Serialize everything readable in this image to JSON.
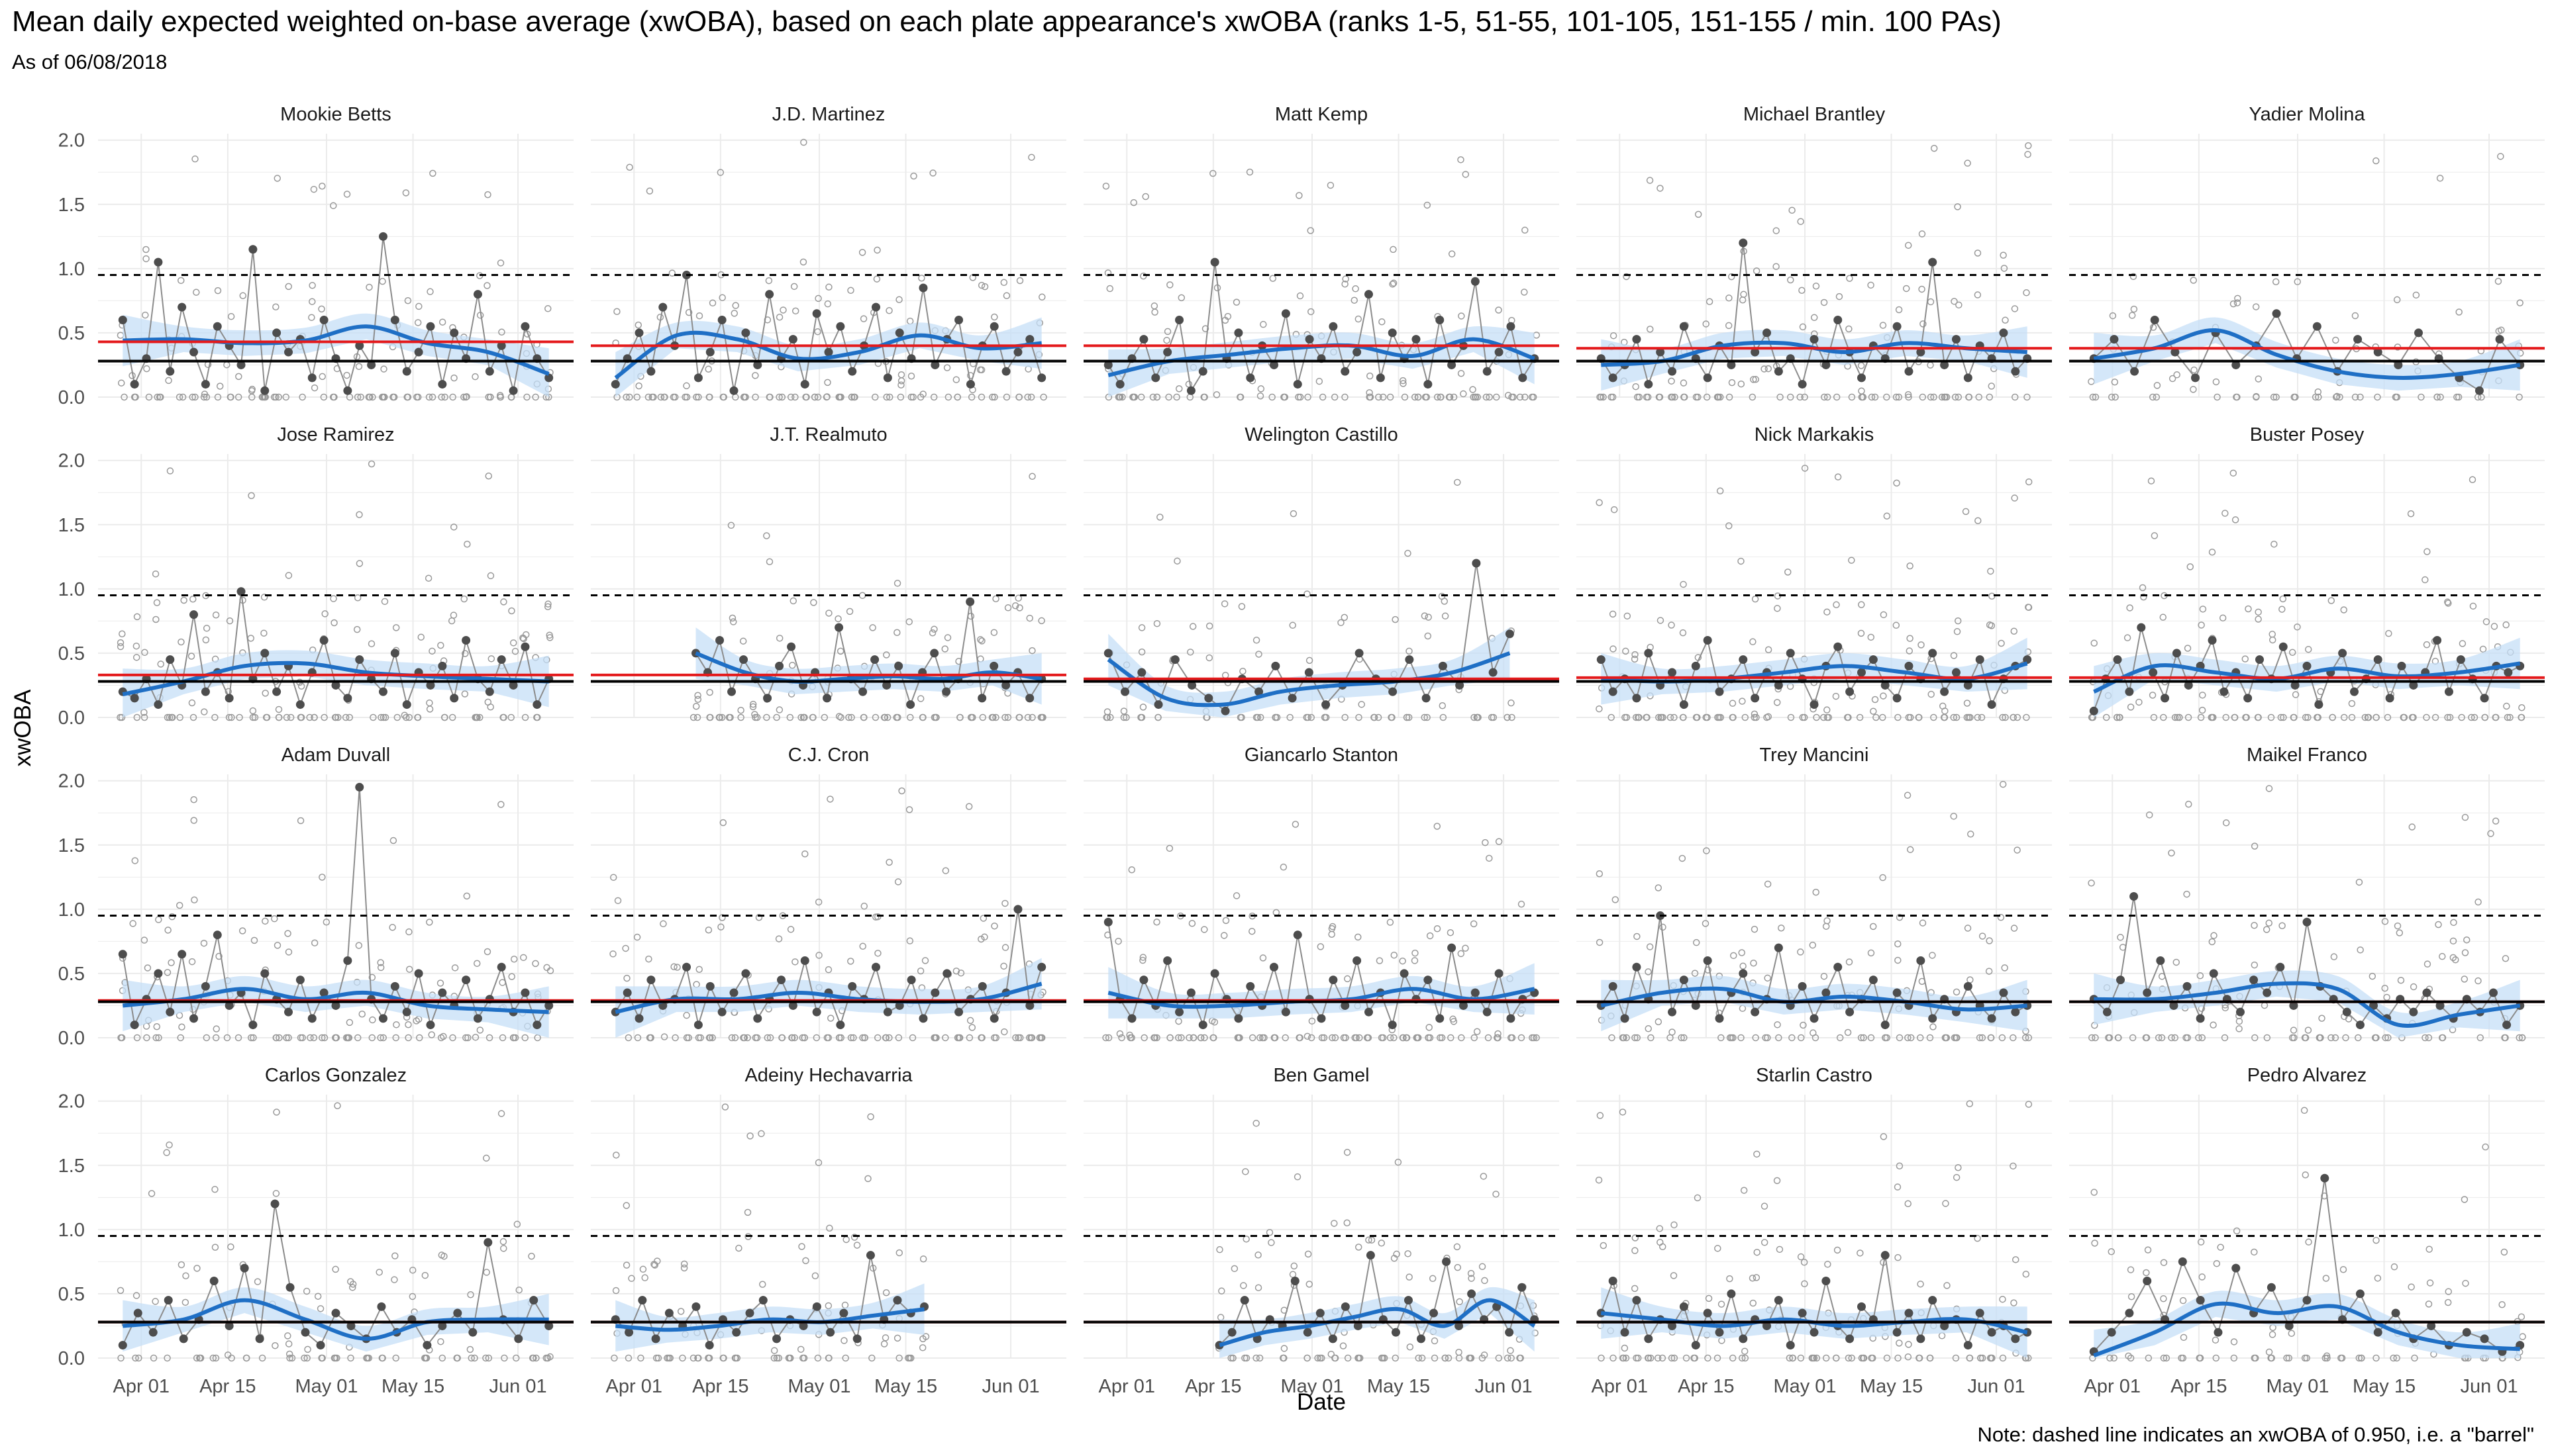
{
  "chart_data": {
    "type": "scatter",
    "title": "Mean daily expected weighted on-base average (xwOBA), based on each plate appearance's xwOBA (ranks 1-5, 51-55, 101-105, 151-155 / min. 100 PAs)",
    "subtitle": "As of 06/08/2018",
    "xlabel": "Date",
    "ylabel": "xwOBA",
    "note": "Note: dashed line indicates an xwOBA of 0.950, i.e. a \"barrel\"",
    "x_range": [
      "2018-03-25",
      "2018-06-10"
    ],
    "x_ticks": [
      "Apr 01",
      "Apr 15",
      "May 01",
      "May 15",
      "Jun 01"
    ],
    "ylim": [
      0,
      2.05
    ],
    "y_ticks": [
      "0.0",
      "0.5",
      "1.0",
      "1.5",
      "2.0"
    ],
    "barrel_xwoba": 0.95,
    "grid": true,
    "colors": {
      "daily_mean": "#4d4d4d",
      "pa_points": "#999999",
      "smooth": "#1f6fc5",
      "ribbon": "#c6dff7",
      "player_mean": "#e41a1c",
      "league_mean": "#000000"
    },
    "league_mean": 0.28,
    "panels": [
      {
        "name": "Mookie Betts",
        "start": "2018-03-29",
        "end": "2018-06-06",
        "mean": 0.43,
        "smooth": [
          0.44,
          0.45,
          0.42,
          0.44,
          0.55,
          0.42,
          0.35,
          0.18
        ],
        "daily": [
          0.6,
          0.1,
          0.3,
          1.05,
          0.2,
          0.7,
          0.35,
          0.1,
          0.55,
          0.4,
          0.25,
          1.15,
          0.05,
          0.5,
          0.35,
          0.45,
          0.15,
          0.6,
          0.3,
          0.05,
          0.4,
          0.25,
          1.25,
          0.6,
          0.2,
          0.35,
          0.55,
          0.1,
          0.5,
          0.3,
          0.8,
          0.2,
          0.4,
          0.05,
          0.55,
          0.3,
          0.15
        ]
      },
      {
        "name": "J.D. Martinez",
        "start": "2018-03-29",
        "end": "2018-06-06",
        "mean": 0.4,
        "smooth": [
          0.15,
          0.48,
          0.45,
          0.3,
          0.35,
          0.48,
          0.38,
          0.42
        ],
        "daily": [
          0.1,
          0.3,
          0.5,
          0.2,
          0.7,
          0.4,
          0.95,
          0.15,
          0.35,
          0.6,
          0.05,
          0.5,
          0.25,
          0.8,
          0.3,
          0.45,
          0.1,
          0.65,
          0.35,
          0.55,
          0.2,
          0.4,
          0.7,
          0.15,
          0.5,
          0.3,
          0.85,
          0.25,
          0.45,
          0.6,
          0.1,
          0.4,
          0.55,
          0.2,
          0.35,
          0.45,
          0.15
        ]
      },
      {
        "name": "Matt Kemp",
        "start": "2018-03-29",
        "end": "2018-06-06",
        "mean": 0.4,
        "smooth": [
          0.17,
          0.28,
          0.33,
          0.38,
          0.4,
          0.32,
          0.45,
          0.3
        ],
        "daily": [
          0.25,
          0.1,
          0.3,
          0.45,
          0.15,
          0.35,
          0.6,
          0.05,
          0.2,
          1.05,
          0.3,
          0.5,
          0.15,
          0.4,
          0.25,
          0.65,
          0.1,
          0.45,
          0.3,
          0.55,
          0.2,
          0.35,
          0.8,
          0.15,
          0.5,
          0.3,
          0.45,
          0.1,
          0.6,
          0.25,
          0.4,
          0.9,
          0.2,
          0.35,
          0.55,
          0.15,
          0.3
        ]
      },
      {
        "name": "Michael Brantley",
        "start": "2018-03-29",
        "end": "2018-06-06",
        "mean": 0.38,
        "smooth": [
          0.25,
          0.28,
          0.4,
          0.42,
          0.35,
          0.42,
          0.38,
          0.35
        ],
        "daily": [
          0.3,
          0.15,
          0.25,
          0.45,
          0.1,
          0.35,
          0.2,
          0.55,
          0.3,
          0.15,
          0.4,
          0.25,
          1.2,
          0.35,
          0.5,
          0.2,
          0.3,
          0.1,
          0.45,
          0.25,
          0.6,
          0.35,
          0.15,
          0.4,
          0.3,
          0.55,
          0.2,
          0.35,
          1.05,
          0.25,
          0.45,
          0.15,
          0.4,
          0.3,
          0.5,
          0.2,
          0.3
        ]
      },
      {
        "name": "Yadier Molina",
        "start": "2018-03-29",
        "end": "2018-06-06",
        "mean": 0.38,
        "smooth": [
          0.3,
          0.38,
          0.52,
          0.33,
          0.2,
          0.15,
          0.18,
          0.25
        ],
        "daily": [
          0.3,
          0.45,
          0.2,
          0.6,
          0.35,
          0.15,
          0.5,
          0.25,
          0.4,
          0.65,
          0.3,
          0.55,
          0.2,
          0.45,
          0.35,
          0.25,
          0.5,
          0.3,
          0.15,
          0.05,
          0.45,
          0.25
        ]
      },
      {
        "name": "Jose Ramirez",
        "start": "2018-03-29",
        "end": "2018-06-06",
        "mean": 0.33,
        "smooth": [
          0.18,
          0.28,
          0.4,
          0.42,
          0.35,
          0.32,
          0.3,
          0.28
        ],
        "daily": [
          0.2,
          0.15,
          0.3,
          0.1,
          0.45,
          0.25,
          0.8,
          0.2,
          0.35,
          0.15,
          0.98,
          0.3,
          0.5,
          0.2,
          0.4,
          0.1,
          0.35,
          0.6,
          0.25,
          0.15,
          0.45,
          0.3,
          0.2,
          0.5,
          0.1,
          0.35,
          0.25,
          0.4,
          0.15,
          0.6,
          0.3,
          0.2,
          0.45,
          0.25,
          0.55,
          0.1,
          0.3
        ]
      },
      {
        "name": "J.T. Realmuto",
        "start": "2018-04-11",
        "end": "2018-06-06",
        "mean": 0.33,
        "smooth": [
          0.5,
          0.35,
          0.28,
          0.3,
          0.32,
          0.3,
          0.35,
          0.3
        ],
        "daily": [
          0.5,
          0.35,
          0.6,
          0.2,
          0.45,
          0.3,
          0.15,
          0.4,
          0.55,
          0.25,
          0.35,
          0.15,
          0.7,
          0.3,
          0.2,
          0.45,
          0.25,
          0.4,
          0.1,
          0.35,
          0.5,
          0.2,
          0.3,
          0.9,
          0.15,
          0.4,
          0.25,
          0.35,
          0.15,
          0.3
        ]
      },
      {
        "name": "Welington Castillo",
        "start": "2018-03-29",
        "end": "2018-06-02",
        "mean": 0.3,
        "smooth": [
          0.45,
          0.15,
          0.1,
          0.2,
          0.25,
          0.28,
          0.35,
          0.5
        ],
        "daily": [
          0.5,
          0.2,
          0.35,
          0.1,
          0.45,
          0.25,
          0.15,
          0.05,
          0.3,
          0.2,
          0.4,
          0.15,
          0.35,
          0.1,
          0.25,
          0.5,
          0.3,
          0.2,
          0.45,
          0.15,
          0.4,
          0.25,
          1.2,
          0.35,
          0.65
        ]
      },
      {
        "name": "Nick Markakis",
        "start": "2018-03-29",
        "end": "2018-06-06",
        "mean": 0.31,
        "smooth": [
          0.3,
          0.28,
          0.3,
          0.35,
          0.4,
          0.35,
          0.3,
          0.42
        ],
        "daily": [
          0.45,
          0.2,
          0.3,
          0.15,
          0.5,
          0.25,
          0.35,
          0.1,
          0.4,
          0.6,
          0.2,
          0.3,
          0.45,
          0.15,
          0.35,
          0.25,
          0.5,
          0.3,
          0.1,
          0.4,
          0.55,
          0.2,
          0.35,
          0.45,
          0.25,
          0.15,
          0.4,
          0.3,
          0.5,
          0.2,
          0.35,
          0.25,
          0.45,
          0.1,
          0.3,
          0.4,
          0.45
        ]
      },
      {
        "name": "Buster Posey",
        "start": "2018-03-29",
        "end": "2018-06-06",
        "mean": 0.31,
        "smooth": [
          0.2,
          0.4,
          0.35,
          0.3,
          0.38,
          0.32,
          0.35,
          0.42
        ],
        "daily": [
          0.05,
          0.3,
          0.45,
          0.2,
          0.7,
          0.35,
          0.15,
          0.5,
          0.25,
          0.4,
          0.6,
          0.2,
          0.35,
          0.15,
          0.45,
          0.3,
          0.55,
          0.25,
          0.4,
          0.1,
          0.35,
          0.5,
          0.2,
          0.3,
          0.45,
          0.15,
          0.4,
          0.25,
          0.35,
          0.6,
          0.2,
          0.45,
          0.3,
          0.15,
          0.4,
          0.35,
          0.4
        ]
      },
      {
        "name": "Adam Duvall",
        "start": "2018-03-29",
        "end": "2018-06-06",
        "mean": 0.29,
        "smooth": [
          0.25,
          0.3,
          0.38,
          0.3,
          0.35,
          0.25,
          0.22,
          0.2
        ],
        "daily": [
          0.65,
          0.1,
          0.3,
          0.5,
          0.2,
          0.65,
          0.15,
          0.4,
          0.8,
          0.25,
          0.35,
          0.1,
          0.5,
          0.3,
          0.2,
          0.45,
          0.15,
          0.35,
          0.25,
          0.6,
          1.95,
          0.3,
          0.15,
          0.4,
          0.2,
          0.5,
          0.1,
          0.35,
          0.25,
          0.45,
          0.15,
          0.3,
          0.55,
          0.2,
          0.35,
          0.1,
          0.25
        ]
      },
      {
        "name": "C.J. Cron",
        "start": "2018-03-29",
        "end": "2018-06-06",
        "mean": 0.29,
        "smooth": [
          0.2,
          0.3,
          0.3,
          0.35,
          0.3,
          0.28,
          0.3,
          0.42
        ],
        "daily": [
          0.2,
          0.35,
          0.15,
          0.45,
          0.25,
          0.3,
          0.55,
          0.1,
          0.4,
          0.2,
          0.35,
          0.5,
          0.15,
          0.3,
          0.45,
          0.25,
          0.6,
          0.2,
          0.35,
          0.1,
          0.4,
          0.3,
          0.55,
          0.2,
          0.25,
          0.45,
          0.15,
          0.35,
          0.5,
          0.2,
          0.3,
          0.4,
          0.15,
          0.35,
          1.0,
          0.25,
          0.55
        ]
      },
      {
        "name": "Giancarlo Stanton",
        "start": "2018-03-29",
        "end": "2018-06-06",
        "mean": 0.29,
        "smooth": [
          0.35,
          0.25,
          0.25,
          0.28,
          0.3,
          0.38,
          0.3,
          0.38
        ],
        "daily": [
          0.9,
          0.3,
          0.15,
          0.45,
          0.25,
          0.6,
          0.2,
          0.35,
          0.1,
          0.5,
          0.3,
          0.15,
          0.4,
          0.25,
          0.55,
          0.2,
          0.8,
          0.3,
          0.15,
          0.45,
          0.25,
          0.6,
          0.2,
          0.35,
          0.1,
          0.5,
          0.3,
          0.45,
          0.15,
          0.7,
          0.25,
          0.35,
          0.2,
          0.5,
          0.15,
          0.3,
          0.35
        ]
      },
      {
        "name": "Trey Mancini",
        "start": "2018-03-29",
        "end": "2018-06-06",
        "mean": 0.28,
        "smooth": [
          0.25,
          0.35,
          0.38,
          0.28,
          0.32,
          0.28,
          0.22,
          0.25
        ],
        "daily": [
          0.25,
          0.4,
          0.15,
          0.55,
          0.3,
          0.95,
          0.2,
          0.45,
          0.25,
          0.6,
          0.15,
          0.35,
          0.5,
          0.2,
          0.3,
          0.7,
          0.25,
          0.4,
          0.15,
          0.35,
          0.55,
          0.2,
          0.3,
          0.45,
          0.1,
          0.35,
          0.25,
          0.6,
          0.15,
          0.3,
          0.2,
          0.4,
          0.25,
          0.15,
          0.35,
          0.2,
          0.25
        ]
      },
      {
        "name": "Maikel Franco",
        "start": "2018-03-29",
        "end": "2018-06-06",
        "mean": 0.28,
        "smooth": [
          0.3,
          0.3,
          0.35,
          0.42,
          0.38,
          0.1,
          0.18,
          0.25
        ],
        "daily": [
          0.3,
          0.2,
          0.45,
          1.1,
          0.35,
          0.6,
          0.25,
          0.4,
          0.15,
          0.5,
          0.3,
          0.2,
          0.45,
          0.35,
          0.55,
          0.25,
          0.9,
          0.4,
          0.3,
          0.2,
          0.1,
          0.25,
          0.15,
          0.3,
          0.2,
          0.35,
          0.25,
          0.15,
          0.3,
          0.2,
          0.35,
          0.1,
          0.25
        ]
      },
      {
        "name": "Carlos Gonzalez",
        "start": "2018-03-29",
        "end": "2018-06-06",
        "mean": 0.28,
        "smooth": [
          0.25,
          0.3,
          0.45,
          0.3,
          0.15,
          0.28,
          0.3,
          0.3
        ],
        "daily": [
          0.1,
          0.35,
          0.2,
          0.45,
          0.15,
          0.3,
          0.6,
          0.25,
          0.7,
          0.15,
          1.2,
          0.55,
          0.2,
          0.1,
          0.35,
          0.25,
          0.15,
          0.4,
          0.2,
          0.3,
          0.1,
          0.25,
          0.35,
          0.2,
          0.9,
          0.3,
          0.15,
          0.45,
          0.25
        ]
      },
      {
        "name": "Adeiny Hechavarria",
        "start": "2018-03-29",
        "end": "2018-05-18",
        "mean": 0.28,
        "smooth": [
          0.25,
          0.22,
          0.25,
          0.3,
          0.28,
          0.33,
          0.38
        ],
        "daily": [
          0.3,
          0.2,
          0.45,
          0.15,
          0.35,
          0.25,
          0.4,
          0.1,
          0.3,
          0.2,
          0.35,
          0.45,
          0.15,
          0.3,
          0.25,
          0.4,
          0.2,
          0.35,
          0.15,
          0.8,
          0.3,
          0.45,
          0.35,
          0.4
        ]
      },
      {
        "name": "Ben Gamel",
        "start": "2018-04-16",
        "end": "2018-06-06",
        "mean": 0.28,
        "smooth": [
          0.1,
          0.2,
          0.25,
          0.32,
          0.38,
          0.25,
          0.45,
          0.25
        ],
        "daily": [
          0.1,
          0.2,
          0.45,
          0.15,
          0.3,
          0.25,
          0.6,
          0.2,
          0.35,
          0.15,
          0.4,
          0.25,
          0.8,
          0.3,
          0.2,
          0.45,
          0.15,
          0.35,
          0.75,
          0.25,
          0.5,
          0.3,
          0.4,
          0.2,
          0.55,
          0.3
        ]
      },
      {
        "name": "Starlin Castro",
        "start": "2018-03-29",
        "end": "2018-06-06",
        "mean": 0.28,
        "smooth": [
          0.35,
          0.3,
          0.25,
          0.3,
          0.25,
          0.28,
          0.3,
          0.2
        ],
        "daily": [
          0.35,
          0.6,
          0.2,
          0.45,
          0.15,
          0.3,
          0.25,
          0.4,
          0.1,
          0.35,
          0.2,
          0.5,
          0.15,
          0.3,
          0.25,
          0.45,
          0.1,
          0.35,
          0.2,
          0.6,
          0.25,
          0.15,
          0.4,
          0.3,
          0.8,
          0.2,
          0.35,
          0.15,
          0.45,
          0.25,
          0.3,
          0.1,
          0.35,
          0.2,
          0.25,
          0.15,
          0.2
        ]
      },
      {
        "name": "Pedro Alvarez",
        "start": "2018-03-29",
        "end": "2018-06-06",
        "mean": 0.28,
        "smooth": [
          0.02,
          0.2,
          0.42,
          0.35,
          0.4,
          0.2,
          0.1,
          0.07
        ],
        "daily": [
          0.05,
          0.2,
          0.35,
          0.6,
          0.3,
          0.75,
          0.45,
          0.2,
          0.7,
          0.35,
          0.55,
          0.25,
          0.45,
          1.4,
          0.3,
          0.5,
          0.2,
          0.35,
          0.15,
          0.25,
          0.1,
          0.2,
          0.15,
          0.05,
          0.1
        ]
      }
    ]
  }
}
